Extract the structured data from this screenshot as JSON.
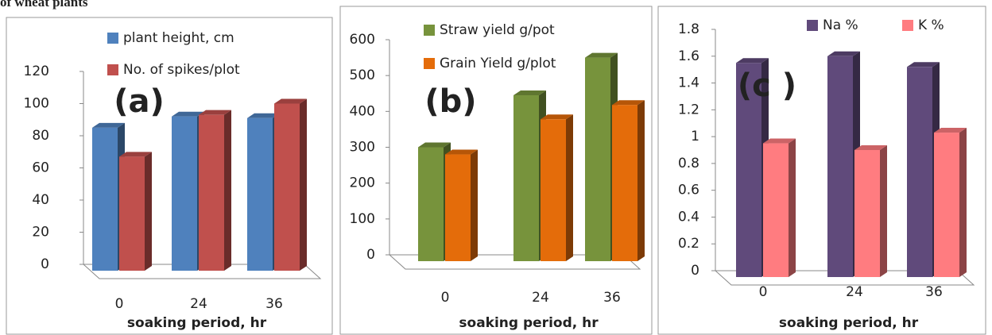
{
  "caption": "of wheat plants",
  "chart_data": [
    {
      "type": "bar",
      "annotation": "(a)",
      "x_label": "soaking period, hr",
      "categories": [
        "0",
        "24",
        "36"
      ],
      "series": [
        {
          "name": "plant height, cm",
          "color": "#4f81bd",
          "values": [
            85,
            92,
            91
          ]
        },
        {
          "name": "No. of spikes/plot",
          "color": "#c0504d",
          "values": [
            67,
            93,
            100
          ]
        }
      ],
      "ylim": [
        0,
        120
      ],
      "yticks": [
        0,
        20,
        40,
        60,
        80,
        100,
        120
      ]
    },
    {
      "type": "bar",
      "annotation": "(b)",
      "x_label": "soaking period, hr",
      "categories": [
        "0",
        "24",
        "36"
      ],
      "series": [
        {
          "name": "Straw yield g/pot",
          "color": "#77933c",
          "values": [
            300,
            445,
            550
          ]
        },
        {
          "name": "Grain Yield  g/plot",
          "color": "#e46c0a",
          "values": [
            280,
            378,
            418
          ]
        }
      ],
      "ylim": [
        0,
        600
      ],
      "yticks": [
        0,
        100,
        200,
        300,
        400,
        500,
        600
      ]
    },
    {
      "type": "bar",
      "annotation": "(c )",
      "x_label": "soaking period, hr",
      "categories": [
        "0",
        "24",
        "36"
      ],
      "series": [
        {
          "name": "Na  %",
          "color": "#604a7b",
          "values": [
            1.55,
            1.6,
            1.52
          ]
        },
        {
          "name": "K %",
          "color": "#ff7c80",
          "values": [
            0.95,
            0.9,
            1.03
          ]
        }
      ],
      "ylim": [
        0,
        1.8
      ],
      "yticks": [
        0,
        0.2,
        0.4,
        0.6,
        0.8,
        1,
        1.2,
        1.4,
        1.6,
        1.8
      ]
    }
  ]
}
